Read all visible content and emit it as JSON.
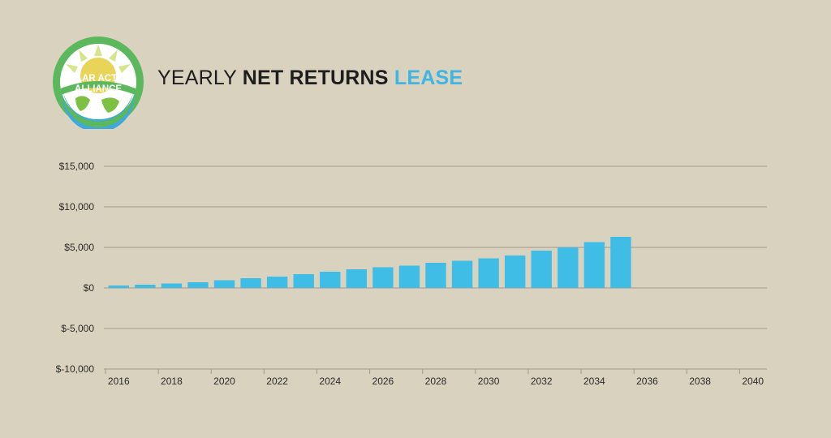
{
  "header": {
    "title_part1": "YEARLY ",
    "title_part2": "NET RETURNS ",
    "title_part3": "LEASE",
    "title_accent_color": "#3fb6e2"
  },
  "logo": {
    "line1": "SOLAR ACTION",
    "line2": "ALLIANCE",
    "icon": "solar-earth-logo",
    "colors": {
      "ring": "#5cb85c",
      "sun": "#d6e58a",
      "ocean": "#3da9dc",
      "land": "#7cc142"
    }
  },
  "chart_data": {
    "type": "bar",
    "categories": [
      "2016",
      "2017",
      "2018",
      "2019",
      "2020",
      "2021",
      "2022",
      "2023",
      "2024",
      "2025",
      "2026",
      "2027",
      "2028",
      "2029",
      "2030",
      "2031",
      "2032",
      "2033",
      "2034",
      "2035",
      "2036",
      "2037",
      "2038",
      "2039",
      "2040"
    ],
    "values": [
      300,
      400,
      550,
      700,
      950,
      1200,
      1400,
      1700,
      2000,
      2300,
      2550,
      2750,
      3100,
      3350,
      3650,
      4000,
      4600,
      5000,
      5650,
      6300,
      null,
      null,
      null,
      null,
      null
    ],
    "x_tick_labels": [
      "2016",
      "2018",
      "2020",
      "2022",
      "2024",
      "2026",
      "2028",
      "2030",
      "2032",
      "2034",
      "2036",
      "2038",
      "2040"
    ],
    "y_tick_labels": [
      "$15,000",
      "$10,000",
      "$5,000",
      "$0",
      "$-5,000",
      "$-10,000"
    ],
    "y_ticks": [
      15000,
      10000,
      5000,
      0,
      -5000,
      -10000
    ],
    "ylim": [
      -10000,
      15000
    ],
    "bar_color": "#3fbde6",
    "grid": true,
    "title": "YEARLY NET RETURNS LEASE"
  }
}
